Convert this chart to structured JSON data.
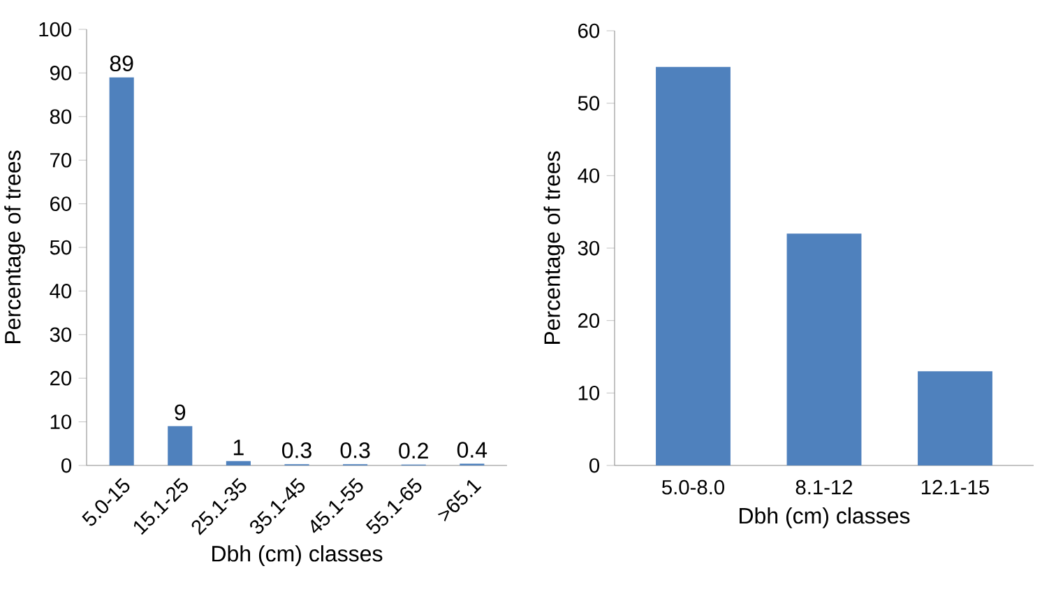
{
  "chart_data": [
    {
      "type": "bar",
      "categories": [
        "5.0-15",
        "15.1-25",
        "25.1-35",
        "35.1-45",
        "45.1-55",
        "55.1-65",
        ">65.1"
      ],
      "values": [
        89,
        9,
        1,
        0.3,
        0.3,
        0.2,
        0.4
      ],
      "color": "#4f81bd",
      "data_labels": true,
      "xlabel": "Dbh (cm) classes",
      "ylabel": "Percentage of trees",
      "ylim": [
        0,
        100
      ],
      "yticks": [
        0,
        10,
        20,
        30,
        40,
        50,
        60,
        70,
        80,
        90,
        100
      ]
    },
    {
      "type": "bar",
      "categories": [
        "5.0-8.0",
        "8.1-12",
        "12.1-15"
      ],
      "values": [
        55,
        32,
        13
      ],
      "color": "#4f81bd",
      "xlabel": "Dbh (cm) classes",
      "ylabel": "Percentage of trees",
      "ylim": [
        0,
        60
      ],
      "yticks": [
        0,
        10,
        20,
        30,
        40,
        50,
        60
      ]
    }
  ]
}
